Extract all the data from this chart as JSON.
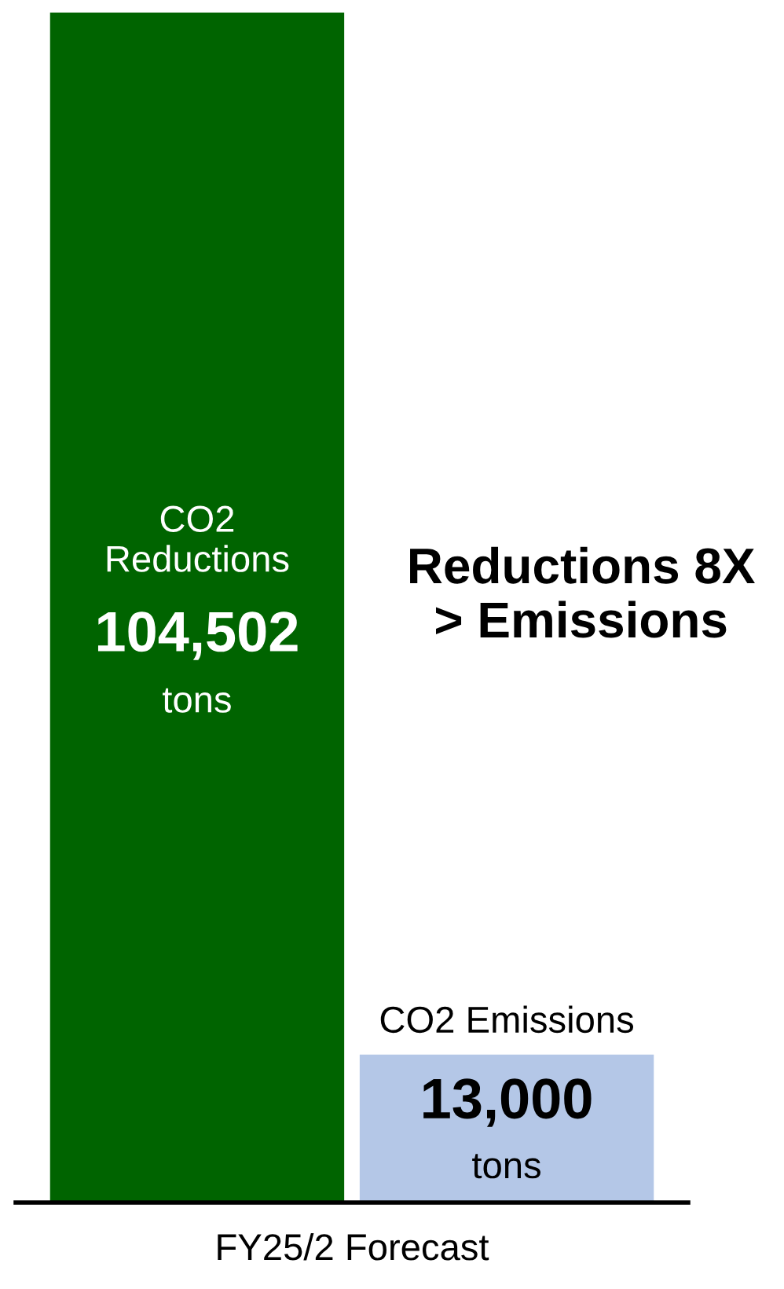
{
  "chart_data": {
    "type": "bar",
    "categories": [
      "CO2\nReductions",
      "CO2 Emissions"
    ],
    "values": [
      104502,
      13000
    ],
    "colors": [
      "#006400",
      "#b4c7e7"
    ],
    "value_labels": [
      "104,502",
      "13,000"
    ],
    "xlabel": "FY25/2 Forecast",
    "annotations": [
      "tons",
      "tons",
      "Reductions 8X\n> Emissions"
    ]
  }
}
